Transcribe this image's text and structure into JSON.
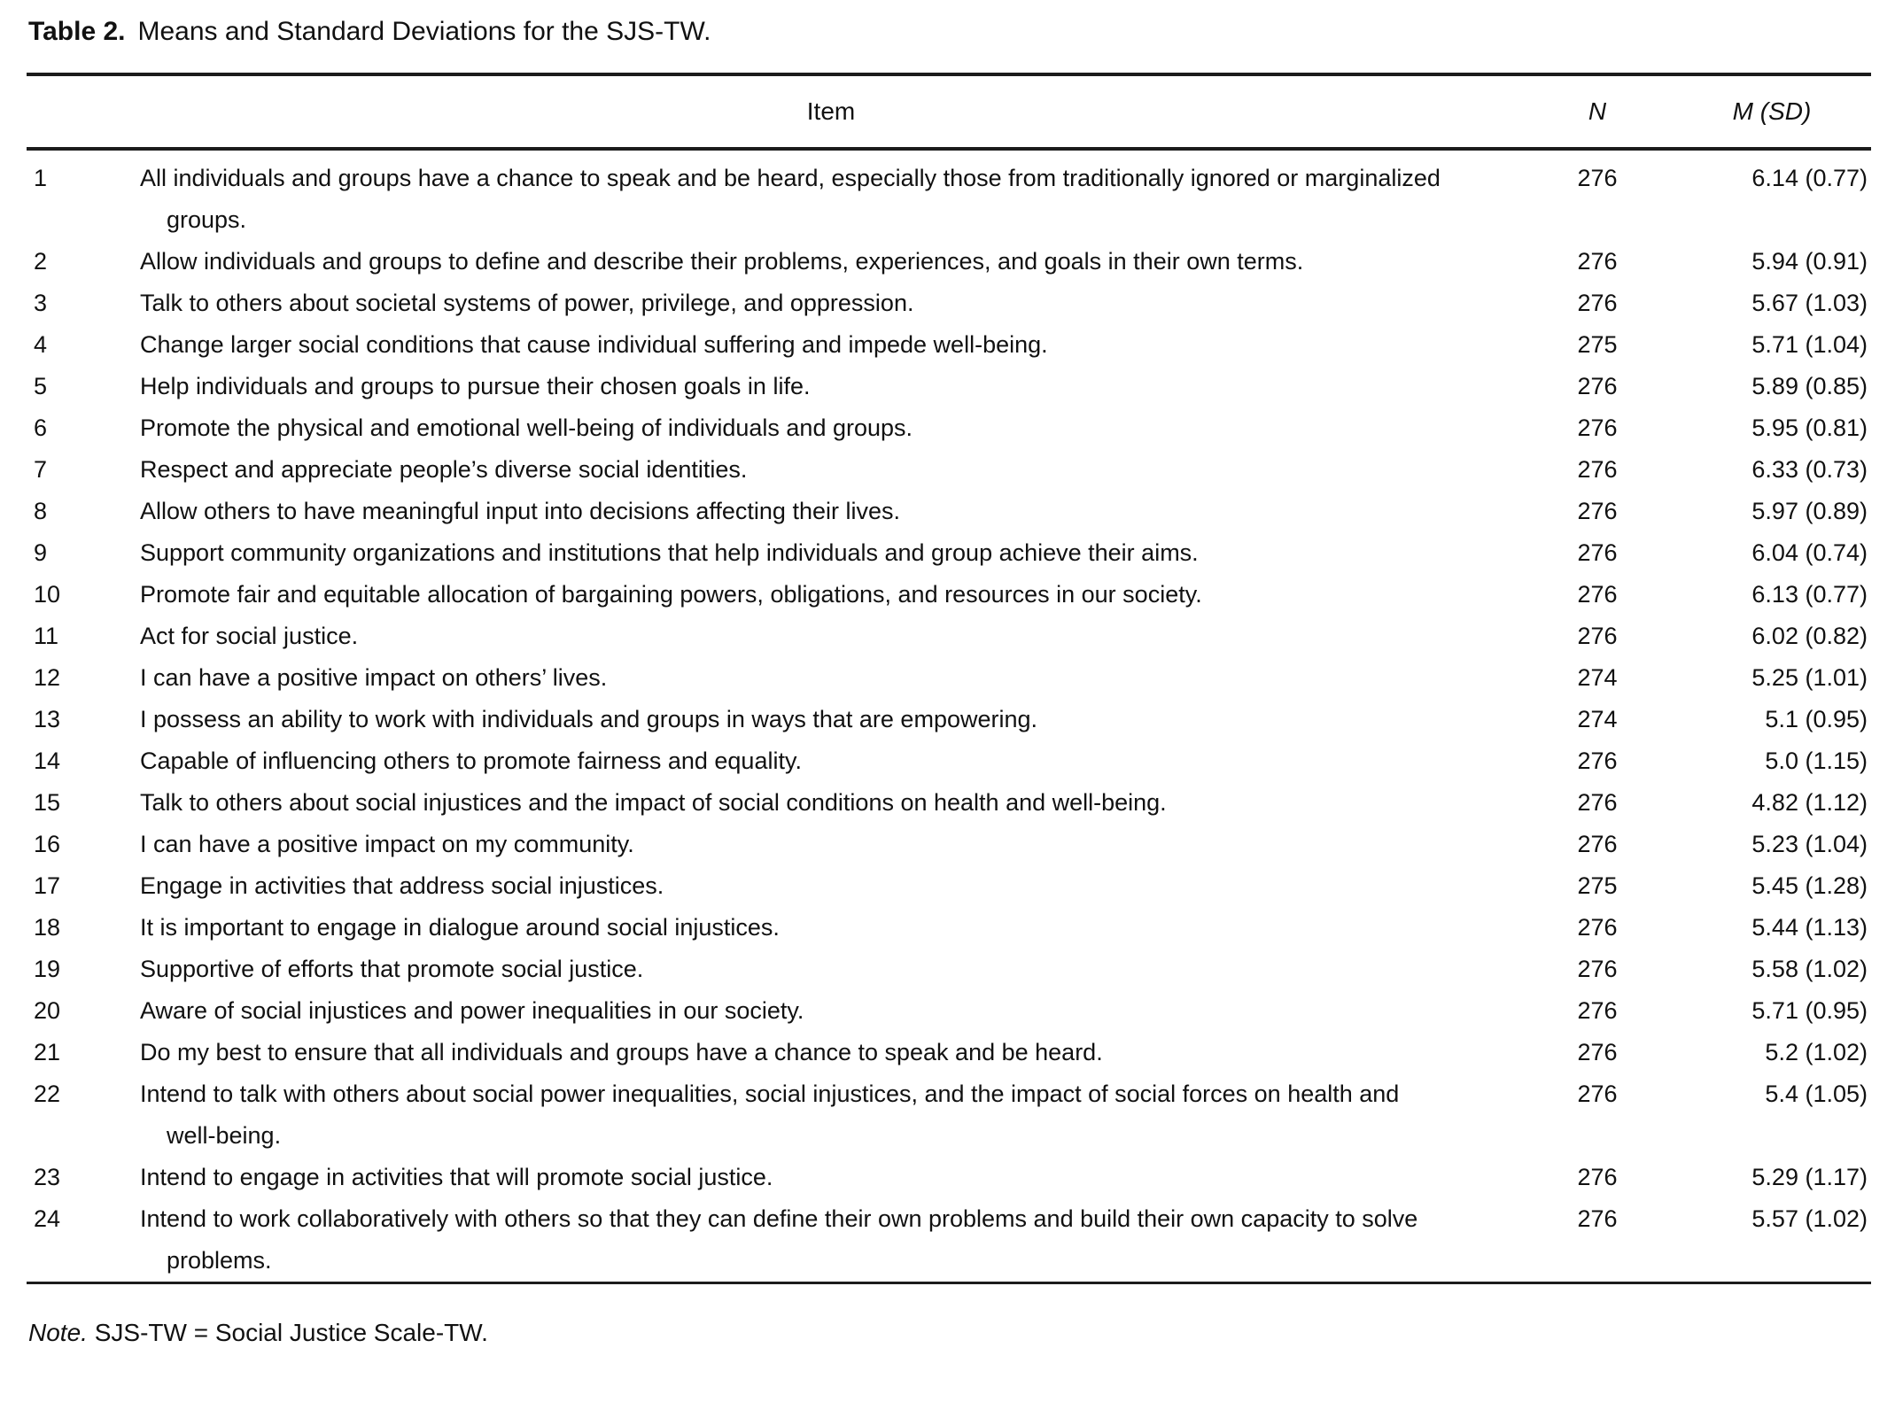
{
  "title": {
    "label": "Table 2.",
    "caption": "Means and Standard Deviations for the SJS-TW."
  },
  "table": {
    "headers": {
      "item": "Item",
      "n": "N",
      "m_sd": "M (SD)"
    },
    "rows": [
      {
        "num": "1",
        "item": "All individuals and groups have a chance to speak and be heard, especially those from traditionally ignored or marginalized groups.",
        "n": "276",
        "m_sd": "6.14 (0.77)"
      },
      {
        "num": "2",
        "item": "Allow individuals and groups to define and describe their problems, experiences, and goals in their own terms.",
        "n": "276",
        "m_sd": "5.94 (0.91)"
      },
      {
        "num": "3",
        "item": "Talk to others about societal systems of power, privilege, and oppression.",
        "n": "276",
        "m_sd": "5.67 (1.03)"
      },
      {
        "num": "4",
        "item": "Change larger social conditions that cause individual suffering and impede well-being.",
        "n": "275",
        "m_sd": "5.71 (1.04)"
      },
      {
        "num": "5",
        "item": "Help individuals and groups to pursue their chosen goals in life.",
        "n": "276",
        "m_sd": "5.89 (0.85)"
      },
      {
        "num": "6",
        "item": "Promote the physical and emotional well-being of individuals and groups.",
        "n": "276",
        "m_sd": "5.95 (0.81)"
      },
      {
        "num": "7",
        "item": "Respect and appreciate people’s diverse social identities.",
        "n": "276",
        "m_sd": "6.33 (0.73)"
      },
      {
        "num": "8",
        "item": "Allow others to have meaningful input into decisions affecting their lives.",
        "n": "276",
        "m_sd": "5.97 (0.89)"
      },
      {
        "num": "9",
        "item": "Support community organizations and institutions that help individuals and group achieve their aims.",
        "n": "276",
        "m_sd": "6.04 (0.74)"
      },
      {
        "num": "10",
        "item": "Promote fair and equitable allocation of bargaining powers, obligations, and resources in our society.",
        "n": "276",
        "m_sd": "6.13 (0.77)"
      },
      {
        "num": "11",
        "item": "Act for social justice.",
        "n": "276",
        "m_sd": "6.02 (0.82)"
      },
      {
        "num": "12",
        "item": "I can have a positive impact on others’ lives.",
        "n": "274",
        "m_sd": "5.25 (1.01)"
      },
      {
        "num": "13",
        "item": "I possess an ability to work with individuals and groups in ways that are empowering.",
        "n": "274",
        "m_sd": "5.1 (0.95)"
      },
      {
        "num": "14",
        "item": "Capable of influencing others to promote fairness and equality.",
        "n": "276",
        "m_sd": "5.0 (1.15)"
      },
      {
        "num": "15",
        "item": "Talk to others about social injustices and the impact of social conditions on health and well-being.",
        "n": "276",
        "m_sd": "4.82 (1.12)"
      },
      {
        "num": "16",
        "item": "I can have a positive impact on my community.",
        "n": "276",
        "m_sd": "5.23 (1.04)"
      },
      {
        "num": "17",
        "item": "Engage in activities that address social injustices.",
        "n": "275",
        "m_sd": "5.45 (1.28)"
      },
      {
        "num": "18",
        "item": "It is important to engage in dialogue around social injustices.",
        "n": "276",
        "m_sd": "5.44 (1.13)"
      },
      {
        "num": "19",
        "item": "Supportive of efforts that promote social justice.",
        "n": "276",
        "m_sd": "5.58 (1.02)"
      },
      {
        "num": "20",
        "item": "Aware of social injustices and power inequalities in our society.",
        "n": "276",
        "m_sd": "5.71 (0.95)"
      },
      {
        "num": "21",
        "item": "Do my best to ensure that all individuals and groups have a chance to speak and be heard.",
        "n": "276",
        "m_sd": "5.2 (1.02)"
      },
      {
        "num": "22",
        "item": "Intend to talk with others about social power inequalities, social injustices, and the impact of social forces on health and well-being.",
        "n": "276",
        "m_sd": "5.4 (1.05)"
      },
      {
        "num": "23",
        "item": "Intend to engage in activities that will promote social justice.",
        "n": "276",
        "m_sd": "5.29 (1.17)"
      },
      {
        "num": "24",
        "item": "Intend to work collaboratively with others so that they can define their own problems and build their own capacity to solve problems.",
        "n": "276",
        "m_sd": "5.57 (1.02)"
      }
    ]
  },
  "note": {
    "label": "Note.",
    "text": " SJS-TW = Social Justice Scale-TW."
  }
}
